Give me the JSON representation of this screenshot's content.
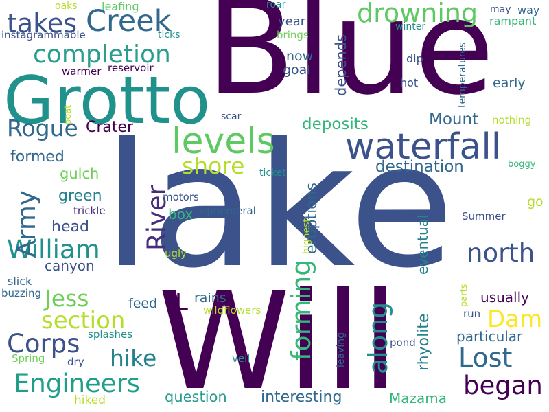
{
  "background": "#ffffff",
  "words": [
    {
      "text": "Blue",
      "color": "#440154"
    },
    {
      "text": "lake",
      "color": "#3b528b"
    },
    {
      "text": "Will",
      "color": "#440154"
    },
    {
      "text": "Grotto",
      "color": "#21918c"
    },
    {
      "text": "waterfall",
      "color": "#3b528b"
    },
    {
      "text": "levels",
      "color": "#5ec962"
    },
    {
      "text": "Creek",
      "color": "#31688e"
    },
    {
      "text": "takes",
      "color": "#3b528b"
    },
    {
      "text": "completion",
      "color": "#2a9d8f"
    },
    {
      "text": "drowning",
      "color": "#5ec962"
    },
    {
      "text": "William",
      "color": "#21918c"
    },
    {
      "text": "Engineers",
      "color": "#1f9e89"
    },
    {
      "text": "Corps",
      "color": "#3b528b"
    },
    {
      "text": "Army",
      "color": "#31688e"
    },
    {
      "text": "Rogue",
      "color": "#31688e"
    },
    {
      "text": "shore",
      "color": "#b5de2b"
    },
    {
      "text": "River",
      "color": "#472d7b"
    },
    {
      "text": "along",
      "color": "#21918c"
    },
    {
      "text": "forming",
      "color": "#35b779"
    },
    {
      "text": "north",
      "color": "#3b528b"
    },
    {
      "text": "began",
      "color": "#440154"
    },
    {
      "text": "Lost",
      "color": "#31688e"
    },
    {
      "text": "Jess",
      "color": "#6ece58"
    },
    {
      "text": "section",
      "color": "#b5de2b"
    },
    {
      "text": "hike",
      "color": "#26828e"
    },
    {
      "text": "Dam",
      "color": "#fde725"
    },
    {
      "text": "L",
      "color": "#440154"
    },
    {
      "text": "Crater",
      "color": "#440154"
    },
    {
      "text": "deposits",
      "color": "#35b779"
    },
    {
      "text": "destination",
      "color": "#31688e"
    },
    {
      "text": "Mount",
      "color": "#31688e"
    },
    {
      "text": "depends",
      "color": "#3b528b"
    },
    {
      "text": "eruptions",
      "color": "#31688e"
    },
    {
      "text": "rhyolite",
      "color": "#26828e"
    },
    {
      "text": "eventual",
      "color": "#26828e"
    },
    {
      "text": "interesting",
      "color": "#31688e"
    },
    {
      "text": "question",
      "color": "#2a9d8f"
    },
    {
      "text": "Mazama",
      "color": "#35b779"
    },
    {
      "text": "particular",
      "color": "#31688e"
    },
    {
      "text": "usually",
      "color": "#440154"
    },
    {
      "text": "formed",
      "color": "#31688e"
    },
    {
      "text": "gulch",
      "color": "#6ece58"
    },
    {
      "text": "green",
      "color": "#26828e"
    },
    {
      "text": "head",
      "color": "#3b528b"
    },
    {
      "text": "canyon",
      "color": "#3b528b"
    },
    {
      "text": "box",
      "color": "#35b779"
    },
    {
      "text": "feed",
      "color": "#31688e"
    },
    {
      "text": "rains",
      "color": "#31688e"
    },
    {
      "text": "year",
      "color": "#3b528b"
    },
    {
      "text": "now",
      "color": "#31688e"
    },
    {
      "text": "goal",
      "color": "#3b528b"
    },
    {
      "text": "early",
      "color": "#31688e"
    },
    {
      "text": "go",
      "color": "#b5de2b"
    },
    {
      "text": "oaks",
      "color": "#b5de2b"
    },
    {
      "text": "leafing",
      "color": "#5ec962"
    },
    {
      "text": "roar",
      "color": "#21918c"
    },
    {
      "text": "may",
      "color": "#3b528b"
    },
    {
      "text": "way",
      "color": "#31688e"
    },
    {
      "text": "instagrammable",
      "color": "#3b528b"
    },
    {
      "text": "ticks",
      "color": "#21918c"
    },
    {
      "text": "brings",
      "color": "#6ece58"
    },
    {
      "text": "winter",
      "color": "#21918c"
    },
    {
      "text": "rampant",
      "color": "#35b779"
    },
    {
      "text": "dip",
      "color": "#3b528b"
    },
    {
      "text": "hot",
      "color": "#3b528b"
    },
    {
      "text": "temperatures",
      "color": "#31688e"
    },
    {
      "text": "warmer",
      "color": "#440154"
    },
    {
      "text": "reservoir",
      "color": "#440154"
    },
    {
      "text": "scar",
      "color": "#3b528b"
    },
    {
      "text": "nothing",
      "color": "#b5de2b"
    },
    {
      "text": "boat",
      "color": "#b5de2b"
    },
    {
      "text": "ticket",
      "color": "#21918c"
    },
    {
      "text": "boggy",
      "color": "#35b779"
    },
    {
      "text": "motors",
      "color": "#3b528b"
    },
    {
      "text": "trickle",
      "color": "#472d7b"
    },
    {
      "text": "ephemeral",
      "color": "#31688e"
    },
    {
      "text": "highest",
      "color": "#b5de2b"
    },
    {
      "text": "Summer",
      "color": "#3b528b"
    },
    {
      "text": "ugly",
      "color": "#b5de2b"
    },
    {
      "text": "slick",
      "color": "#31688e"
    },
    {
      "text": "buzzing",
      "color": "#31688e"
    },
    {
      "text": "wildflowers",
      "color": "#b5de2b"
    },
    {
      "text": "parts",
      "color": "#b5de2b"
    },
    {
      "text": "run",
      "color": "#3b528b"
    },
    {
      "text": "leaving",
      "color": "#31688e"
    },
    {
      "text": "pond",
      "color": "#3b528b"
    },
    {
      "text": "splashes",
      "color": "#21918c"
    },
    {
      "text": "dry",
      "color": "#3b528b"
    },
    {
      "text": "veil",
      "color": "#21918c"
    },
    {
      "text": "Spring",
      "color": "#6ece58"
    },
    {
      "text": "hiked",
      "color": "#b5de2b"
    }
  ]
}
